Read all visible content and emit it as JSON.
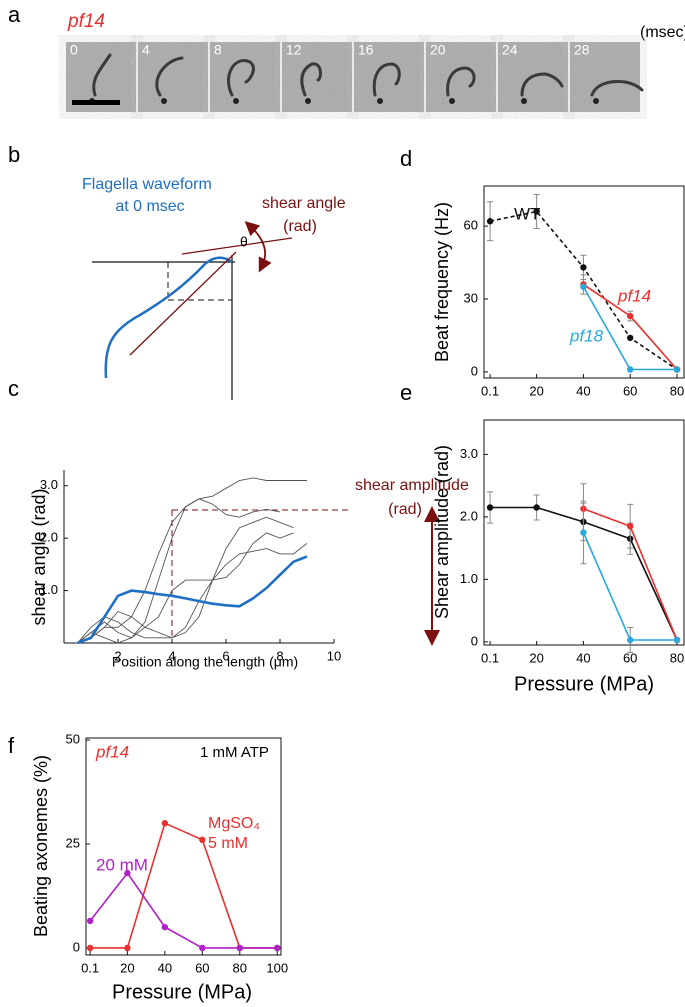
{
  "labels": [
    "a",
    "b",
    "c",
    "d",
    "e",
    "f"
  ],
  "panel_a": {
    "strain": "pf14",
    "unit": "(msec)",
    "times": [
      0,
      4,
      8,
      12,
      16,
      20,
      24,
      28
    ]
  },
  "panel_b": {
    "waveform_label_1": "Flagella waveform",
    "waveform_label_2": "at 0 msec",
    "angle_label_1": "shear angle",
    "angle_label_2": "(rad)",
    "angle_symbol": "θ"
  },
  "chart_data": [
    {
      "type": "line",
      "x_label": "Position along the length (μm)",
      "y_label": "shear angle  (rad)",
      "annotation": [
        "shear amplitude",
        "(rad)"
      ],
      "x": [
        0.5,
        1,
        1.5,
        2,
        2.5,
        3,
        3.5,
        4,
        4.5,
        5,
        5.5,
        6,
        6.5,
        7,
        7.5,
        8,
        8.5,
        9
      ],
      "series": [
        {
          "color": "#555555",
          "values": [
            0,
            0.1,
            0.3,
            0.3,
            0.5,
            1.0,
            1.7,
            2.3,
            2.6,
            2.75,
            2.8,
            2.95,
            3.1,
            3.15,
            3.1,
            3.1,
            3.1,
            3.1
          ]
        },
        {
          "color": "#555555",
          "values": [
            0,
            0.2,
            0.4,
            0.2,
            0.1,
            0.4,
            1.2,
            2.0,
            2.6,
            2.75,
            2.65,
            2.45,
            2.4,
            2.5,
            2.55,
            2.5,
            null,
            null
          ]
        },
        {
          "color": "#555555",
          "values": [
            0,
            0.3,
            0.5,
            0.4,
            0.2,
            0.1,
            0.1,
            0.1,
            0.3,
            0.8,
            1.2,
            1.5,
            1.7,
            1.75,
            1.8,
            1.7,
            1.7,
            1.9
          ]
        },
        {
          "color": "#555555",
          "values": [
            0,
            0.1,
            0.3,
            0.6,
            0.5,
            0.3,
            0.5,
            1.0,
            1.2,
            1.2,
            1.2,
            1.25,
            1.5,
            1.9,
            2.1,
            2.0,
            2.1,
            null
          ]
        },
        {
          "color": "#555555",
          "values": [
            0,
            0.2,
            0.1,
            0,
            0.1,
            0.3,
            0.2,
            0.1,
            0.2,
            0.5,
            1.2,
            1.8,
            2.2,
            2.3,
            2.4,
            2.3,
            2.2,
            null
          ]
        },
        {
          "color": "#1f6fc4",
          "values": [
            0,
            0.1,
            0.5,
            0.9,
            1.0,
            0.97,
            0.93,
            0.9,
            0.85,
            0.8,
            0.75,
            0.72,
            0.7,
            0.85,
            1.05,
            1.3,
            1.55,
            1.65
          ]
        }
      ],
      "xlim": [
        0,
        10
      ],
      "xticks": [
        2,
        4,
        6,
        8,
        10
      ],
      "ylim": [
        0,
        3.3
      ],
      "yticks": [
        {
          "value": 1,
          "label": "1.0"
        },
        {
          "value": 2,
          "label": "2.0"
        },
        {
          "value": 3,
          "label": "3.0"
        }
      ]
    },
    {
      "type": "line",
      "y_label": "Beat frequency (Hz)",
      "series": [
        {
          "name": "WT",
          "color": "#111111",
          "line_style": "dashed",
          "x": [
            0.1,
            20,
            40,
            60,
            80
          ],
          "values": [
            62,
            66,
            43,
            14,
            1
          ],
          "errors": [
            8,
            7,
            5,
            null,
            null
          ]
        },
        {
          "name": "pf14",
          "color": "#e8312f",
          "line_style": "solid",
          "x": [
            40,
            60,
            80
          ],
          "values": [
            36,
            23,
            1
          ],
          "errors": [
            4,
            2,
            null
          ]
        },
        {
          "name": "pf18",
          "color": "#29a8e0",
          "line_style": "solid",
          "x": [
            40,
            60,
            80
          ],
          "values": [
            35,
            1,
            1
          ],
          "errors": [
            null,
            null,
            null
          ]
        }
      ],
      "xlim": [
        -2.5,
        83
      ],
      "xticks": [
        0.1,
        20,
        40,
        60,
        80
      ],
      "ylim": [
        -2.5,
        76.5
      ],
      "yticks": [
        0,
        30,
        60
      ]
    },
    {
      "type": "line",
      "x_label": "Pressure (MPa)",
      "y_label": "Shear amplitude (rad)",
      "series": [
        {
          "color": "#111111",
          "line_style": "solid",
          "x": [
            0.1,
            20,
            40,
            60,
            80
          ],
          "values": [
            2.15,
            2.15,
            1.92,
            1.65,
            0.03
          ],
          "errors": [
            0.25,
            0.2,
            0.3,
            0.25,
            null
          ]
        },
        {
          "color": "#e8312f",
          "line_style": "solid",
          "x": [
            40,
            60,
            80
          ],
          "values": [
            2.13,
            1.85,
            0.03
          ],
          "errors": [
            0.4,
            0.35,
            null
          ]
        },
        {
          "color": "#29a8e0",
          "line_style": "solid",
          "x": [
            40,
            60,
            80
          ],
          "values": [
            1.75,
            0.03,
            0.03
          ],
          "errors": [
            0.5,
            0.2,
            null
          ]
        }
      ],
      "xlim": [
        -2.5,
        83
      ],
      "xticks": [
        0.1,
        20,
        40,
        60,
        80
      ],
      "ylim": [
        -0.05,
        3.55
      ],
      "yticks": [
        0,
        {
          "value": 1,
          "label": "1.0"
        },
        {
          "value": 2,
          "label": "2.0"
        },
        {
          "value": 3,
          "label": "3.0"
        }
      ]
    },
    {
      "type": "line",
      "x_label": "Pressure (MPa)",
      "y_label": "Beating axonemes (%)",
      "annotations": [
        "pf14",
        "1 mM ATP"
      ],
      "series": [
        {
          "name": "MgSO₄ 5 mM",
          "color": "#e8312f",
          "line_style": "solid",
          "x": [
            0.1,
            20,
            40,
            60,
            80,
            100
          ],
          "values": [
            0,
            0,
            30,
            26,
            0,
            0
          ]
        },
        {
          "name": "20 mM",
          "color": "#b01fc8",
          "line_style": "solid",
          "x": [
            0.1,
            20,
            40,
            60,
            80,
            100
          ],
          "values": [
            6.5,
            18,
            5,
            0,
            0,
            0
          ]
        }
      ],
      "xlim": [
        -2.1,
        102
      ],
      "xticks": [
        0.1,
        20,
        40,
        60,
        80,
        100
      ],
      "ylim": [
        -1.7,
        50.5
      ],
      "yticks": [
        0,
        25,
        50
      ]
    }
  ]
}
